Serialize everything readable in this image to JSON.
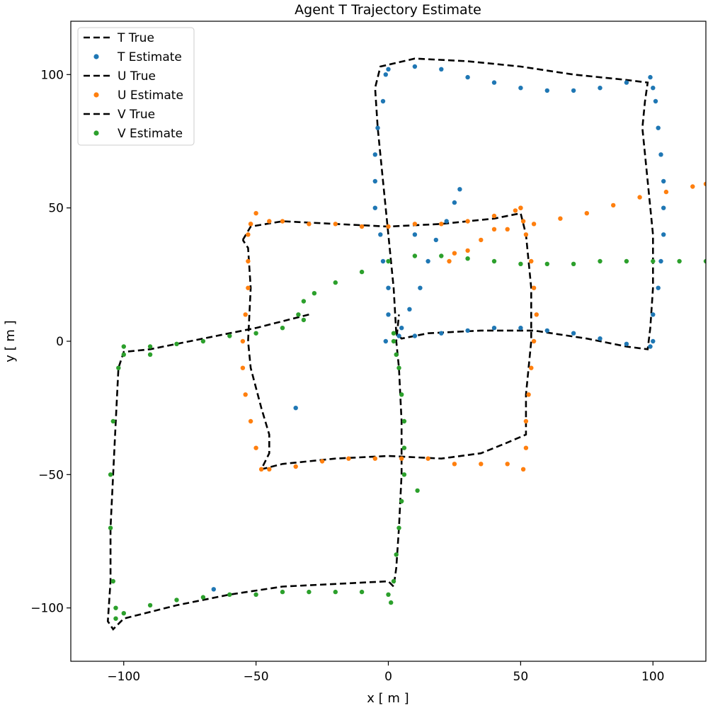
{
  "chart_data": {
    "type": "scatter",
    "title": "Agent T Trajectory Estimate",
    "xlabel": "x [ m ]",
    "ylabel": "y [ m ]",
    "xlim": [
      -120,
      120
    ],
    "ylim": [
      -120,
      120
    ],
    "xticks": [
      -100,
      -50,
      0,
      50,
      100
    ],
    "yticks": [
      -100,
      -50,
      0,
      50,
      100
    ],
    "grid": false,
    "legend_position": "top-left",
    "series": [
      {
        "name": "T True",
        "kind": "line",
        "color": "#000000",
        "points": [
          [
            3,
            3
          ],
          [
            2,
            20
          ],
          [
            0,
            40
          ],
          [
            -2,
            60
          ],
          [
            -4,
            80
          ],
          [
            -5,
            95
          ],
          [
            -3,
            103
          ],
          [
            10,
            106
          ],
          [
            30,
            105
          ],
          [
            50,
            103
          ],
          [
            70,
            100
          ],
          [
            90,
            98
          ],
          [
            98,
            97
          ],
          [
            97,
            90
          ],
          [
            96,
            80
          ],
          [
            98,
            60
          ],
          [
            100,
            40
          ],
          [
            100,
            20
          ],
          [
            99,
            5
          ],
          [
            98,
            -3
          ],
          [
            90,
            -2
          ],
          [
            75,
            1
          ],
          [
            55,
            4
          ],
          [
            35,
            4
          ],
          [
            15,
            3
          ],
          [
            5,
            1
          ],
          [
            3,
            3
          ]
        ]
      },
      {
        "name": "T Estimate",
        "kind": "dots",
        "color": "#1f77b4",
        "points": [
          [
            -1,
            0
          ],
          [
            0,
            10
          ],
          [
            0,
            20
          ],
          [
            -2,
            30
          ],
          [
            -3,
            40
          ],
          [
            -5,
            50
          ],
          [
            -5,
            60
          ],
          [
            -5,
            70
          ],
          [
            -4,
            80
          ],
          [
            -2,
            90
          ],
          [
            -1,
            100
          ],
          [
            0,
            102
          ],
          [
            10,
            103
          ],
          [
            20,
            102
          ],
          [
            30,
            99
          ],
          [
            40,
            97
          ],
          [
            50,
            95
          ],
          [
            60,
            94
          ],
          [
            70,
            94
          ],
          [
            80,
            95
          ],
          [
            90,
            97
          ],
          [
            99,
            99
          ],
          [
            100,
            95
          ],
          [
            101,
            90
          ],
          [
            102,
            80
          ],
          [
            103,
            70
          ],
          [
            104,
            60
          ],
          [
            104,
            50
          ],
          [
            104,
            40
          ],
          [
            103,
            30
          ],
          [
            102,
            20
          ],
          [
            100,
            10
          ],
          [
            100,
            0
          ],
          [
            99,
            -2
          ],
          [
            90,
            -1
          ],
          [
            80,
            1
          ],
          [
            70,
            3
          ],
          [
            60,
            4
          ],
          [
            50,
            5
          ],
          [
            40,
            5
          ],
          [
            30,
            4
          ],
          [
            20,
            3
          ],
          [
            10,
            2
          ],
          [
            4,
            2
          ],
          [
            5,
            5
          ],
          [
            8,
            12
          ],
          [
            12,
            20
          ],
          [
            15,
            30
          ],
          [
            18,
            38
          ],
          [
            22,
            45
          ],
          [
            25,
            52
          ],
          [
            27,
            57
          ],
          [
            10,
            40
          ],
          [
            -35,
            -25
          ],
          [
            -66,
            -93
          ]
        ]
      },
      {
        "name": "U True",
        "kind": "line",
        "color": "#000000",
        "points": [
          [
            -55,
            38
          ],
          [
            -52,
            43
          ],
          [
            -40,
            45
          ],
          [
            -20,
            44
          ],
          [
            0,
            43
          ],
          [
            20,
            44
          ],
          [
            40,
            46
          ],
          [
            50,
            48
          ],
          [
            52,
            40
          ],
          [
            54,
            20
          ],
          [
            54,
            0
          ],
          [
            52,
            -20
          ],
          [
            52,
            -35
          ],
          [
            45,
            -38
          ],
          [
            35,
            -42
          ],
          [
            20,
            -44
          ],
          [
            0,
            -43
          ],
          [
            -20,
            -44
          ],
          [
            -40,
            -46
          ],
          [
            -48,
            -48
          ],
          [
            -45,
            -42
          ],
          [
            -45,
            -35
          ],
          [
            -48,
            -25
          ],
          [
            -52,
            -10
          ],
          [
            -53,
            0
          ],
          [
            -52,
            20
          ],
          [
            -53,
            35
          ],
          [
            -55,
            38
          ]
        ]
      },
      {
        "name": "U Estimate",
        "kind": "dots",
        "color": "#ff7f0e",
        "points": [
          [
            -52,
            44
          ],
          [
            -50,
            48
          ],
          [
            -45,
            45
          ],
          [
            -40,
            45
          ],
          [
            -30,
            44
          ],
          [
            -20,
            44
          ],
          [
            -10,
            43
          ],
          [
            0,
            43
          ],
          [
            10,
            44
          ],
          [
            20,
            44
          ],
          [
            30,
            45
          ],
          [
            40,
            47
          ],
          [
            48,
            49
          ],
          [
            50,
            50
          ],
          [
            51,
            45
          ],
          [
            52,
            40
          ],
          [
            54,
            30
          ],
          [
            55,
            20
          ],
          [
            56,
            10
          ],
          [
            55,
            0
          ],
          [
            54,
            -10
          ],
          [
            53,
            -20
          ],
          [
            52,
            -30
          ],
          [
            52,
            -40
          ],
          [
            51,
            -48
          ],
          [
            45,
            -46
          ],
          [
            35,
            -46
          ],
          [
            25,
            -46
          ],
          [
            15,
            -44
          ],
          [
            5,
            -44
          ],
          [
            -5,
            -44
          ],
          [
            -15,
            -44
          ],
          [
            -25,
            -45
          ],
          [
            -35,
            -47
          ],
          [
            -45,
            -48
          ],
          [
            -48,
            -48
          ],
          [
            -50,
            -40
          ],
          [
            -52,
            -30
          ],
          [
            -54,
            -20
          ],
          [
            -55,
            -10
          ],
          [
            -55,
            0
          ],
          [
            -54,
            10
          ],
          [
            -53,
            20
          ],
          [
            -53,
            30
          ],
          [
            -53,
            40
          ],
          [
            -52,
            44
          ],
          [
            50,
            50
          ],
          [
            40,
            42
          ],
          [
            30,
            34
          ],
          [
            23,
            30
          ],
          [
            25,
            33
          ],
          [
            35,
            38
          ],
          [
            45,
            42
          ],
          [
            55,
            44
          ],
          [
            65,
            46
          ],
          [
            75,
            48
          ],
          [
            85,
            51
          ],
          [
            95,
            54
          ],
          [
            105,
            56
          ],
          [
            115,
            58
          ],
          [
            120,
            59
          ]
        ]
      },
      {
        "name": "V True",
        "kind": "line",
        "color": "#000000",
        "points": [
          [
            -30,
            10
          ],
          [
            -50,
            5
          ],
          [
            -70,
            1
          ],
          [
            -90,
            -3
          ],
          [
            -100,
            -4
          ],
          [
            -102,
            -10
          ],
          [
            -103,
            -30
          ],
          [
            -104,
            -50
          ],
          [
            -105,
            -70
          ],
          [
            -105,
            -90
          ],
          [
            -106,
            -105
          ],
          [
            -104,
            -108
          ],
          [
            -100,
            -104
          ],
          [
            -80,
            -99
          ],
          [
            -60,
            -95
          ],
          [
            -40,
            -92
          ],
          [
            -20,
            -91
          ],
          [
            0,
            -90
          ],
          [
            2,
            -92
          ],
          [
            3,
            -85
          ],
          [
            4,
            -70
          ],
          [
            5,
            -50
          ],
          [
            5,
            -30
          ],
          [
            4,
            -10
          ],
          [
            3,
            0
          ],
          [
            4,
            10
          ]
        ]
      },
      {
        "name": "V Estimate",
        "kind": "dots",
        "color": "#2ca02c",
        "points": [
          [
            -32,
            8
          ],
          [
            -34,
            10
          ],
          [
            -32,
            15
          ],
          [
            -28,
            18
          ],
          [
            -20,
            22
          ],
          [
            -10,
            26
          ],
          [
            0,
            30
          ],
          [
            10,
            32
          ],
          [
            20,
            32
          ],
          [
            30,
            31
          ],
          [
            40,
            30
          ],
          [
            50,
            29
          ],
          [
            60,
            29
          ],
          [
            70,
            29
          ],
          [
            80,
            30
          ],
          [
            90,
            30
          ],
          [
            100,
            30
          ],
          [
            110,
            30
          ],
          [
            120,
            30
          ],
          [
            -40,
            5
          ],
          [
            -50,
            3
          ],
          [
            -60,
            2
          ],
          [
            -70,
            0
          ],
          [
            -80,
            -1
          ],
          [
            -90,
            -2
          ],
          [
            -100,
            -2
          ],
          [
            -100,
            -5
          ],
          [
            -102,
            -10
          ],
          [
            -104,
            -30
          ],
          [
            -105,
            -50
          ],
          [
            -105,
            -70
          ],
          [
            -104,
            -90
          ],
          [
            -103,
            -100
          ],
          [
            -103,
            -104
          ],
          [
            -100,
            -102
          ],
          [
            -90,
            -99
          ],
          [
            -80,
            -97
          ],
          [
            -70,
            -96
          ],
          [
            -60,
            -95
          ],
          [
            -50,
            -95
          ],
          [
            -40,
            -94
          ],
          [
            -30,
            -94
          ],
          [
            -20,
            -94
          ],
          [
            -10,
            -94
          ],
          [
            0,
            -95
          ],
          [
            1,
            -98
          ],
          [
            2,
            -90
          ],
          [
            3,
            -80
          ],
          [
            4,
            -70
          ],
          [
            5,
            -60
          ],
          [
            6,
            -50
          ],
          [
            6,
            -40
          ],
          [
            6,
            -30
          ],
          [
            5,
            -20
          ],
          [
            4,
            -10
          ],
          [
            3,
            -5
          ],
          [
            2,
            0
          ],
          [
            2,
            3
          ],
          [
            -90,
            -5
          ],
          [
            11,
            -56
          ]
        ]
      }
    ]
  }
}
